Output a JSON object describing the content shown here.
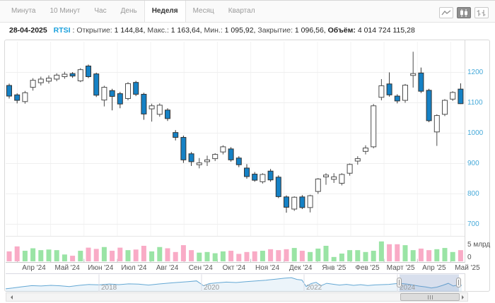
{
  "toolbar": {
    "tabs": [
      {
        "label": "Минута",
        "active": false
      },
      {
        "label": "10 Минут",
        "active": false
      },
      {
        "label": "Час",
        "active": false
      },
      {
        "label": "День",
        "active": false
      },
      {
        "label": "Неделя",
        "active": true
      },
      {
        "label": "Месяц",
        "active": false
      },
      {
        "label": "Квартал",
        "active": false
      }
    ],
    "chart_type_icons": [
      {
        "name": "line-chart-icon",
        "active": false
      },
      {
        "name": "candlestick-icon",
        "active": true
      },
      {
        "name": "ohlc-icon",
        "active": false
      }
    ]
  },
  "infobar": {
    "date": "28-04-2025",
    "symbol": "RTSI",
    "symbol_sep": " : ",
    "items": [
      {
        "label": "Открытие:",
        "value": "1 144,84",
        "sep": ", ",
        "bold": false
      },
      {
        "label": "Макс.:",
        "value": "1 163,64",
        "sep": ", ",
        "bold": false
      },
      {
        "label": "Мин.:",
        "value": "1 095,92",
        "sep": ", ",
        "bold": false
      },
      {
        "label": "Закрытие:",
        "value": "1 096,56",
        "sep": ", ",
        "bold": false
      },
      {
        "label": "Объём:",
        "value": "4 014 724 115,28",
        "sep": "",
        "bold": true
      }
    ]
  },
  "chart_data": {
    "type": "candlestick",
    "symbol": "RTSI",
    "interval": "Неделя",
    "y_ticks": [
      1200,
      1100,
      1000,
      900,
      800,
      700
    ],
    "x_labels": [
      "Апр '24",
      "Май '24",
      "Июн '24",
      "Июл '24",
      "Авг '24",
      "Сен '24",
      "Окт '24",
      "Ноя '24",
      "Дек '24",
      "Янв '25",
      "Фев '25",
      "Март '25",
      "Апр '25",
      "Май '25"
    ],
    "volume_axis": {
      "top_label": "5 млрд",
      "zero_label": "0"
    },
    "candles": [
      [
        1157,
        1163,
        1114,
        1122
      ],
      [
        1126,
        1131,
        1098,
        1108
      ],
      [
        1104,
        1139,
        1097,
        1133
      ],
      [
        1151,
        1181,
        1140,
        1174
      ],
      [
        1166,
        1186,
        1157,
        1178
      ],
      [
        1171,
        1190,
        1163,
        1181
      ],
      [
        1178,
        1197,
        1171,
        1191
      ],
      [
        1186,
        1202,
        1179,
        1194
      ],
      [
        1196,
        1201,
        1182,
        1188
      ],
      [
        1172,
        1214,
        1168,
        1209
      ],
      [
        1221,
        1226,
        1181,
        1186
      ],
      [
        1195,
        1199,
        1119,
        1125
      ],
      [
        1109,
        1156,
        1088,
        1151
      ],
      [
        1140,
        1146,
        1075,
        1121
      ],
      [
        1130,
        1136,
        1082,
        1096
      ],
      [
        1114,
        1168,
        1108,
        1163
      ],
      [
        1167,
        1172,
        1122,
        1128
      ],
      [
        1128,
        1133,
        1044,
        1063
      ],
      [
        1080,
        1097,
        1038,
        1090
      ],
      [
        1062,
        1098,
        1054,
        1092
      ],
      [
        1076,
        1082,
        1040,
        1048
      ],
      [
        1002,
        1010,
        976,
        986
      ],
      [
        986,
        992,
        902,
        912
      ],
      [
        932,
        938,
        892,
        906
      ],
      [
        896,
        918,
        884,
        902
      ],
      [
        906,
        926,
        892,
        912
      ],
      [
        916,
        934,
        908,
        930
      ],
      [
        938,
        960,
        930,
        955
      ],
      [
        948,
        954,
        906,
        912
      ],
      [
        918,
        924,
        888,
        896
      ],
      [
        885,
        898,
        850,
        857
      ],
      [
        865,
        872,
        840,
        845
      ],
      [
        840,
        868,
        834,
        864
      ],
      [
        875,
        882,
        840,
        846
      ],
      [
        855,
        861,
        786,
        791
      ],
      [
        790,
        795,
        738,
        756
      ],
      [
        750,
        792,
        744,
        789
      ],
      [
        790,
        796,
        750,
        755
      ],
      [
        755,
        797,
        739,
        794
      ],
      [
        808,
        852,
        800,
        849
      ],
      [
        856,
        868,
        830,
        862
      ],
      [
        848,
        868,
        836,
        856
      ],
      [
        835,
        868,
        828,
        864
      ],
      [
        868,
        900,
        860,
        897
      ],
      [
        908,
        924,
        896,
        916
      ],
      [
        940,
        960,
        930,
        951
      ],
      [
        955,
        1096,
        950,
        1090
      ],
      [
        1118,
        1178,
        1108,
        1156
      ],
      [
        1162,
        1200,
        1120,
        1126
      ],
      [
        1122,
        1128,
        1098,
        1106
      ],
      [
        1108,
        1162,
        1100,
        1158
      ],
      [
        1190,
        1268,
        1150,
        1196
      ],
      [
        1198,
        1216,
        1132,
        1138
      ],
      [
        1141,
        1146,
        1036,
        1041
      ],
      [
        1004,
        1062,
        958,
        1058
      ],
      [
        1062,
        1112,
        1056,
        1108
      ],
      [
        1112,
        1138,
        1106,
        1134
      ],
      [
        1145,
        1164,
        1096,
        1097
      ]
    ],
    "volumes": [
      3.2,
      4.8,
      3.4,
      4.2,
      3.6,
      3.8,
      3.6,
      2.2,
      1.8,
      3.4,
      4.4,
      4.0,
      4.6,
      3.4,
      4.4,
      3.6,
      3.8,
      5.0,
      3.2,
      4.6,
      4.2,
      3.0,
      5.2,
      3.6,
      2.8,
      3.0,
      2.6,
      3.2,
      3.4,
      2.4,
      3.0,
      3.2,
      3.4,
      3.9,
      3.6,
      3.9,
      4.3,
      3.4,
      3.0,
      4.1,
      5.0,
      1.4,
      2.5,
      3.6,
      3.6,
      3.0,
      3.4,
      6.4,
      5.5,
      5.5,
      5.2,
      3.6,
      4.1,
      3.6,
      3.9,
      4.3,
      3.0,
      3.6
    ],
    "colors": {
      "up_fill": "#ffffff",
      "up_stroke": "#4d4d4d",
      "down_fill": "#1581c5",
      "down_stroke": "#333333",
      "vol_up": "#9ae4a5",
      "vol_down": "#f9abc6",
      "y_axis_label": "#45a9d9",
      "nav_line": "#64a8d4"
    },
    "navigator": {
      "years": [
        "2018",
        "2020",
        "2022",
        "2024"
      ],
      "year_line_x": [
        140,
        285,
        430,
        562
      ],
      "selection": [
        565,
        649
      ],
      "points": [
        [
          8,
          0.15
        ],
        [
          18,
          0.2
        ],
        [
          30,
          0.28
        ],
        [
          45,
          0.36
        ],
        [
          58,
          0.34
        ],
        [
          72,
          0.38
        ],
        [
          85,
          0.35
        ],
        [
          98,
          0.3
        ],
        [
          112,
          0.38
        ],
        [
          126,
          0.44
        ],
        [
          140,
          0.42
        ],
        [
          155,
          0.47
        ],
        [
          168,
          0.43
        ],
        [
          182,
          0.48
        ],
        [
          196,
          0.46
        ],
        [
          210,
          0.4
        ],
        [
          224,
          0.47
        ],
        [
          238,
          0.53
        ],
        [
          252,
          0.58
        ],
        [
          266,
          0.63
        ],
        [
          278,
          0.68
        ],
        [
          288,
          0.35
        ],
        [
          296,
          0.5
        ],
        [
          308,
          0.55
        ],
        [
          320,
          0.6
        ],
        [
          334,
          0.57
        ],
        [
          348,
          0.63
        ],
        [
          362,
          0.68
        ],
        [
          376,
          0.73
        ],
        [
          390,
          0.8
        ],
        [
          402,
          0.86
        ],
        [
          412,
          0.9
        ],
        [
          420,
          0.78
        ],
        [
          427,
          0.74
        ],
        [
          433,
          0.3
        ],
        [
          440,
          0.5
        ],
        [
          447,
          0.58
        ],
        [
          454,
          0.36
        ],
        [
          462,
          0.52
        ],
        [
          470,
          0.46
        ],
        [
          480,
          0.4
        ],
        [
          490,
          0.45
        ],
        [
          500,
          0.38
        ],
        [
          510,
          0.43
        ],
        [
          520,
          0.37
        ],
        [
          530,
          0.41
        ],
        [
          540,
          0.43
        ],
        [
          550,
          0.45
        ],
        [
          558,
          0.49
        ],
        [
          566,
          0.51
        ],
        [
          575,
          0.47
        ],
        [
          584,
          0.4
        ],
        [
          593,
          0.33
        ],
        [
          602,
          0.27
        ],
        [
          610,
          0.2
        ],
        [
          618,
          0.26
        ],
        [
          626,
          0.38
        ],
        [
          634,
          0.52
        ],
        [
          641,
          0.34
        ],
        [
          647,
          0.4
        ],
        [
          653,
          0.38
        ]
      ]
    }
  }
}
